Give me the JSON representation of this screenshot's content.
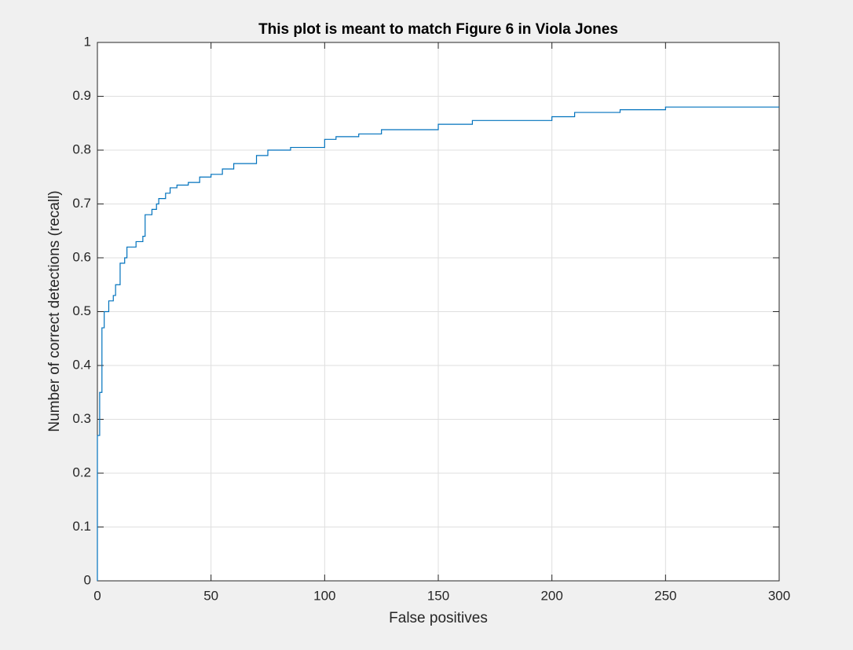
{
  "chart_data": {
    "type": "line",
    "title": "This plot is meant to match Figure 6 in Viola Jones",
    "x_label": "False positives",
    "y_label": "Number of correct detections (recall)",
    "x": [
      0,
      0,
      1,
      1,
      2,
      2,
      3,
      3,
      5,
      5,
      7,
      7,
      8,
      8,
      10,
      10,
      12,
      12,
      13,
      13,
      17,
      17,
      20,
      20,
      21,
      21,
      24,
      24,
      26,
      26,
      27,
      27,
      30,
      30,
      32,
      32,
      35,
      35,
      40,
      40,
      45,
      45,
      50,
      50,
      55,
      55,
      60,
      60,
      70,
      70,
      75,
      75,
      85,
      85,
      100,
      100,
      105,
      105,
      115,
      115,
      125,
      125,
      150,
      150,
      165,
      165,
      200,
      200,
      210,
      210,
      230,
      230,
      250,
      250,
      265,
      265,
      300
    ],
    "series": [
      {
        "name": "recall",
        "color": "#0072bd",
        "values": [
          0,
          0.27,
          0.27,
          0.35,
          0.35,
          0.47,
          0.47,
          0.5,
          0.5,
          0.52,
          0.52,
          0.53,
          0.53,
          0.55,
          0.55,
          0.59,
          0.59,
          0.6,
          0.6,
          0.62,
          0.62,
          0.63,
          0.63,
          0.64,
          0.64,
          0.68,
          0.68,
          0.69,
          0.69,
          0.7,
          0.7,
          0.71,
          0.71,
          0.72,
          0.72,
          0.73,
          0.73,
          0.735,
          0.735,
          0.74,
          0.74,
          0.75,
          0.75,
          0.755,
          0.755,
          0.765,
          0.765,
          0.775,
          0.775,
          0.79,
          0.79,
          0.8,
          0.8,
          0.805,
          0.805,
          0.82,
          0.82,
          0.825,
          0.825,
          0.83,
          0.83,
          0.838,
          0.838,
          0.848,
          0.848,
          0.855,
          0.855,
          0.862,
          0.862,
          0.87,
          0.87,
          0.875,
          0.875,
          0.88,
          0.88,
          0.88,
          0.88
        ]
      }
    ],
    "xlim": [
      0,
      300
    ],
    "xticks": [
      0,
      50,
      100,
      150,
      200,
      250,
      300
    ],
    "ylim": [
      0,
      1
    ],
    "yticks": [
      0,
      0.1,
      0.2,
      0.3,
      0.4,
      0.5,
      0.6,
      0.7,
      0.8,
      0.9,
      1
    ],
    "grid": true
  }
}
